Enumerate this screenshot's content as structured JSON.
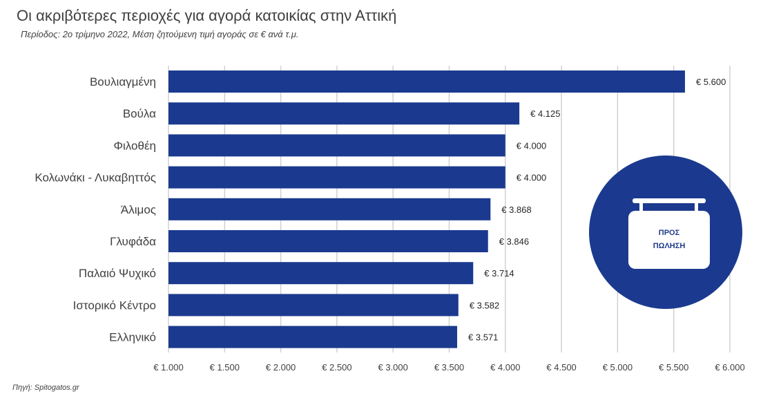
{
  "title": "Οι ακριβότερες περιοχές για αγορά κατοικίας στην Αττική",
  "subtitle": "Περίοδος: 2ο τρίμηνο 2022, Μέση ζητούμενη τιμή αγοράς σε € ανά τ.μ.",
  "source": "Πηγή: Spitogatos.gr",
  "badge": {
    "line1": "ΠΡΟΣ",
    "line2": "ΠΩΛΗΣΗ",
    "icon": "for-sale-sign-icon"
  },
  "colors": {
    "bar": "#1b3a8f",
    "circle": "#1b3a8f",
    "grid": "#d0d0d0"
  },
  "chart_data": {
    "type": "bar",
    "orientation": "horizontal",
    "categories": [
      "Βουλιαγμένη",
      "Βούλα",
      "Φιλοθέη",
      "Κολωνάκι - Λυκαβηττός",
      "Άλιμος",
      "Γλυφάδα",
      "Παλαιό Ψυχικό",
      "Ιστορικό Κέντρο",
      "Ελληνικό"
    ],
    "values": [
      5600,
      4125,
      4000,
      4000,
      3868,
      3846,
      3714,
      3582,
      3571
    ],
    "data_labels": [
      "€ 5.600",
      "€ 4.125",
      "€ 4.000",
      "€ 4.000",
      "€ 3.868",
      "€ 3.846",
      "€ 3.714",
      "€ 3.582",
      "€ 3.571"
    ],
    "xlim": [
      1000,
      6000
    ],
    "xticks": [
      1000,
      1500,
      2000,
      2500,
      3000,
      3500,
      4000,
      4500,
      5000,
      5500,
      6000
    ],
    "xtick_labels": [
      "€ 1.000",
      "€ 1.500",
      "€ 2.000",
      "€ 2.500",
      "€ 3.000",
      "€ 3.500",
      "€ 4.000",
      "€ 4.500",
      "€ 5.000",
      "€ 5.500",
      "€ 6.000"
    ],
    "grid": true,
    "legend": "none"
  }
}
